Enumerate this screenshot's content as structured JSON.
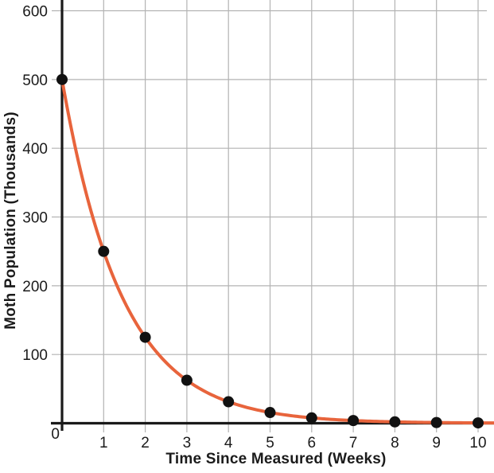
{
  "chart_data": {
    "type": "line",
    "title": "",
    "xlabel": "Time Since Measured (Weeks)",
    "ylabel": "Moth Population (Thousands)",
    "x": [
      0,
      1,
      2,
      3,
      4,
      5,
      6,
      7,
      8,
      9,
      10
    ],
    "values": [
      500,
      250,
      125,
      62.5,
      31.25,
      15.6,
      7.8,
      3.9,
      2,
      1,
      0.5
    ],
    "x_tick_values": [
      1,
      2,
      3,
      4,
      5,
      6,
      7,
      8,
      9,
      10
    ],
    "x_tick_labels": [
      "1",
      "2",
      "3",
      "4",
      "5",
      "6",
      "7",
      "8",
      "9",
      "10"
    ],
    "y_tick_values": [
      100,
      200,
      300,
      400,
      500,
      600
    ],
    "y_tick_labels": [
      "100",
      "200",
      "300",
      "400",
      "500",
      "600"
    ],
    "origin_label": "0",
    "xlim": [
      0,
      10.4
    ],
    "ylim": [
      0,
      615
    ],
    "grid": true,
    "legend": "none",
    "curve_style": "smooth-exponential-through-points",
    "colors": {
      "curve": "#E8643C",
      "points": "#111111",
      "grid": "#b3b3b3",
      "axis": "#1a1a1a",
      "text": "#1b1b1b",
      "background": "#ffffff"
    }
  }
}
